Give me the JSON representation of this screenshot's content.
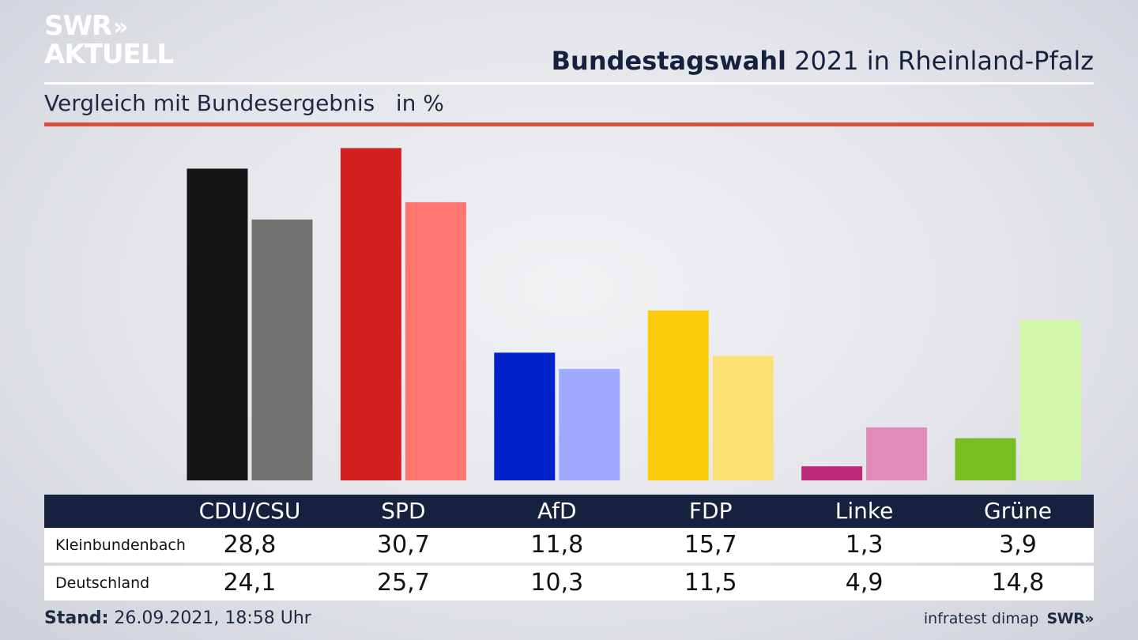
{
  "logo": {
    "line1": "SWR",
    "arrows": "»",
    "line2": "AKTUELL"
  },
  "header": {
    "title_bold": "Bundestagswahl",
    "title_rest": " 2021 in Rheinland-Pfalz",
    "subtitle": "Vergleich mit Bundesergebnis   in %"
  },
  "chart_data": {
    "type": "bar",
    "categories": [
      "CDU/CSU",
      "SPD",
      "AfD",
      "FDP",
      "Linke",
      "Grüne"
    ],
    "series": [
      {
        "name": "Kleinbundenbach",
        "values": [
          28.8,
          30.7,
          11.8,
          15.7,
          1.3,
          3.9
        ]
      },
      {
        "name": "Deutschland",
        "values": [
          24.1,
          25.7,
          10.3,
          11.5,
          4.9,
          14.8
        ]
      }
    ],
    "display_values": {
      "Kleinbundenbach": [
        "28,8",
        "30,7",
        "11,8",
        "15,7",
        "1,3",
        "3,9"
      ],
      "Deutschland": [
        "24,1",
        "25,7",
        "10,3",
        "11,5",
        "4,9",
        "14,8"
      ]
    },
    "colors": {
      "Kleinbundenbach": [
        "#141414",
        "#d61f1f",
        "#0022c8",
        "#fccb0b",
        "#be2b7a",
        "#78be20"
      ],
      "Deutschland": [
        "#737270",
        "#ff7570",
        "#9eaafe",
        "#fde073",
        "#e08bba",
        "#d3f7a8"
      ]
    },
    "ylim": [
      0,
      31
    ],
    "title": "Bundestagswahl 2021 in Rheinland-Pfalz",
    "ylabel": "in %",
    "grid": false
  },
  "table": {
    "row_labels": [
      "Kleinbundenbach",
      "Deutschland"
    ]
  },
  "footer": {
    "stand_label": "Stand:",
    "stand_value": " 26.09.2021, 18:58 Uhr",
    "source": "infratest dimap",
    "brand": "SWR»"
  }
}
